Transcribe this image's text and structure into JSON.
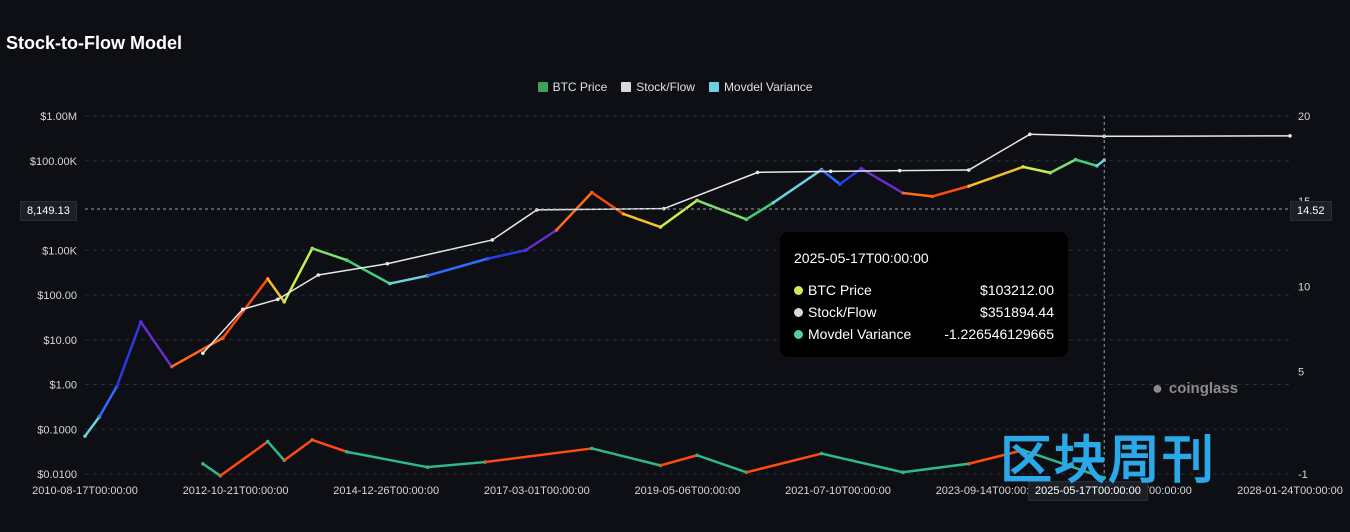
{
  "title": "Stock-to-Flow Model",
  "legend": [
    {
      "label": "BTC Price",
      "color": "#3fa05a"
    },
    {
      "label": "Stock/Flow",
      "color": "#d9d9d9"
    },
    {
      "label": "Movdel Variance",
      "color": "#6fd0e0"
    }
  ],
  "tooltip": {
    "date": "2025-05-17T00:00:00",
    "rows": [
      {
        "label": "BTC Price",
        "value": "$103212.00",
        "dot": "#d4e85a"
      },
      {
        "label": "Stock/Flow",
        "value": "$351894.44",
        "dot": "#d9d9d9"
      },
      {
        "label": "Movdel Variance",
        "value": "-1.226546129665",
        "dot": "#4fd1a8"
      }
    ]
  },
  "crosshair": {
    "left_label": "8,149.13",
    "right_label": "14.52",
    "x_label": "2025-05-17T00:00:00"
  },
  "watermark": {
    "brand": "coinglass",
    "cn": "区块周刊"
  },
  "chart_data": {
    "type": "line",
    "title": "Stock-to-Flow Model",
    "x_ticks": [
      "2010-08-17T00:00:00",
      "2012-10-21T00:00:00",
      "2014-12-26T00:00:00",
      "2017-03-01T00:00:00",
      "2019-05-06T00:00:00",
      "2021-07-10T00:00:00",
      "2023-09-14T00:00:00",
      "2025-11-19T00:00:00",
      "2028-01-24T00:00:00"
    ],
    "x_range": [
      "2010-08-17",
      "2028-01-24"
    ],
    "y_left": {
      "scale": "log",
      "ticks": [
        "$0.0100",
        "$0.1000",
        "$1.00",
        "$10.00",
        "$100.00",
        "$1.00K",
        "$100.00K",
        "$1.00M"
      ],
      "ylim": [
        0.01,
        1000000
      ]
    },
    "y_right": {
      "ticks": [
        "-1",
        "5",
        "10",
        "15",
        "20"
      ],
      "ylim": [
        -1,
        20
      ]
    },
    "grid": true,
    "legend_position": "top-center",
    "series": [
      {
        "name": "BTC Price",
        "axis": "left",
        "x": [
          "2010-08-17",
          "2010-11-01",
          "2011-02-01",
          "2011-06-08",
          "2011-11-18",
          "2012-08-15",
          "2013-04-09",
          "2013-07-05",
          "2013-11-30",
          "2014-06-01",
          "2015-01-14",
          "2015-08-01",
          "2016-06-15",
          "2017-01-01",
          "2017-06-12",
          "2017-12-17",
          "2018-06-01",
          "2018-12-15",
          "2019-06-26",
          "2020-03-13",
          "2020-08-01",
          "2021-04-14",
          "2021-07-20",
          "2021-11-10",
          "2022-06-18",
          "2022-11-21",
          "2023-06-01",
          "2024-03-14",
          "2024-08-05",
          "2024-12-17",
          "2025-04-08",
          "2025-05-17"
        ],
        "values": [
          0.07,
          0.19,
          0.9,
          25,
          2.5,
          11,
          230,
          70,
          1100,
          600,
          180,
          270,
          650,
          1000,
          2800,
          19500,
          6500,
          3300,
          13000,
          4900,
          11500,
          63000,
          30000,
          67000,
          19000,
          16000,
          27000,
          73000,
          54000,
          106000,
          77000,
          103212
        ]
      },
      {
        "name": "Stock/Flow",
        "axis": "left",
        "x": [
          "2012-05-01",
          "2012-11-28",
          "2013-06-01",
          "2014-01-01",
          "2015-01-01",
          "2016-07-09",
          "2017-03-01",
          "2019-01-01",
          "2020-05-11",
          "2021-06-01",
          "2022-06-01",
          "2023-06-01",
          "2024-04-19",
          "2025-05-17",
          "2028-01-24"
        ],
        "values": [
          5,
          48,
          80,
          280,
          500,
          1700,
          8000,
          8500,
          55000,
          58000,
          60000,
          62000,
          390000,
          351894.44,
          360000
        ]
      },
      {
        "name": "Movdel Variance",
        "axis": "right",
        "x": [
          "2012-05-01",
          "2012-08-01",
          "2013-04-09",
          "2013-07-05",
          "2013-11-30",
          "2014-06-01",
          "2015-08-01",
          "2016-06-01",
          "2017-12-17",
          "2018-12-15",
          "2019-06-26",
          "2020-03-13",
          "2021-04-14",
          "2022-06-18",
          "2023-06-01",
          "2024-03-14",
          "2025-05-17"
        ],
        "values": [
          -0.4,
          -1.1,
          0.9,
          -0.2,
          1.0,
          0.3,
          -0.6,
          -0.3,
          0.5,
          -0.5,
          0.1,
          -0.9,
          0.2,
          -0.9,
          -0.4,
          0.4,
          -1.226546129665
        ]
      }
    ]
  }
}
